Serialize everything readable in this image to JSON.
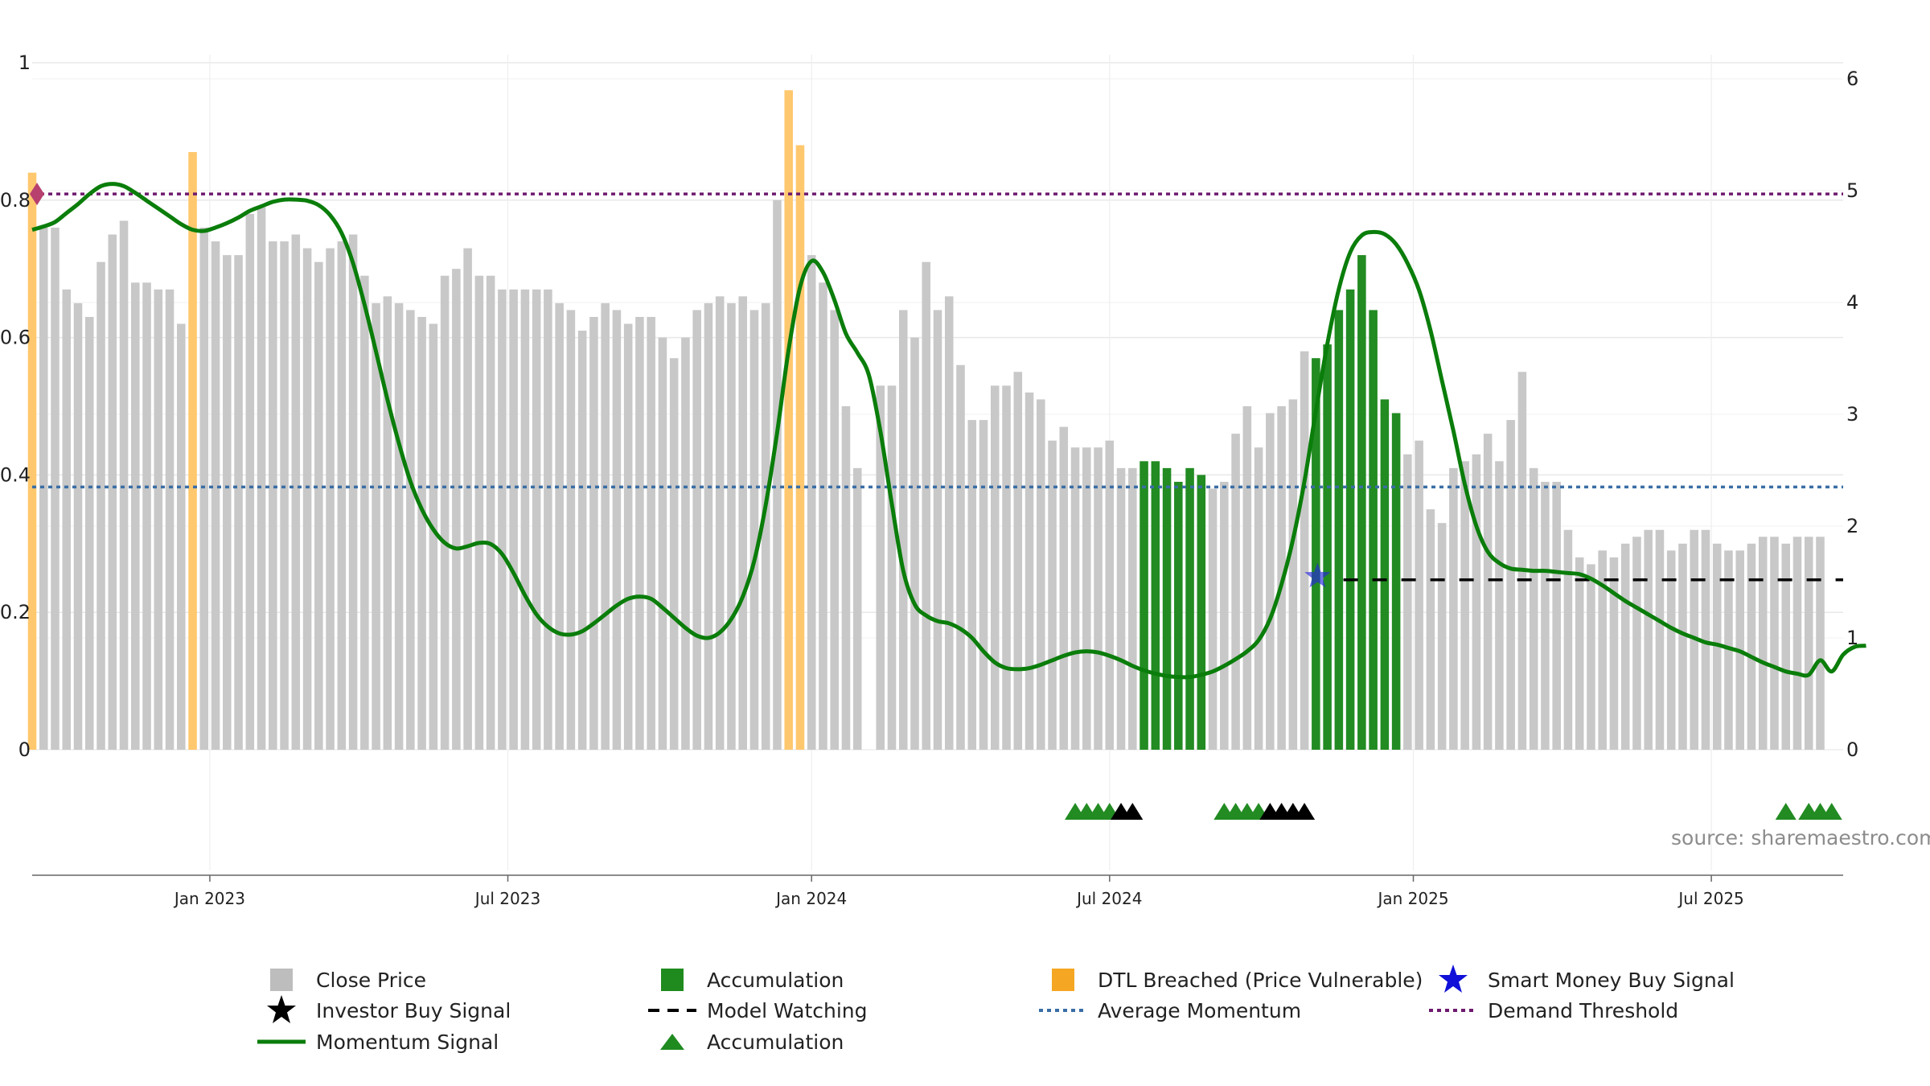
{
  "source_text": "source: sharemaestro.com",
  "colors": {
    "close_price": "#c8c8c8",
    "accumulation": "#228b22",
    "dtl_breached": "#ffc86e",
    "momentum": "#0a7d0a",
    "average_momentum": "#3a6ea5",
    "demand_threshold": "#6e1a6e",
    "smart_money": "#2828dc",
    "investor": "#000000"
  },
  "legend": [
    {
      "label": "Close Price",
      "symbol": "square",
      "color": "#bdbdbd"
    },
    {
      "label": "Accumulation",
      "symbol": "square",
      "color": "#1f8b1f"
    },
    {
      "label": "DTL Breached (Price Vulnerable)",
      "symbol": "square",
      "color": "#f5a623"
    },
    {
      "label": "Smart Money Buy Signal",
      "symbol": "star",
      "color": "#1010d8"
    },
    {
      "label": "Investor Buy Signal",
      "symbol": "star",
      "color": "#000000"
    },
    {
      "label": "Model Watching",
      "symbol": "dash",
      "color": "#000000"
    },
    {
      "label": "Average Momentum",
      "symbol": "dot",
      "color": "#3a6ea5"
    },
    {
      "label": "Demand Threshold",
      "symbol": "dot",
      "color": "#6e1a6e"
    },
    {
      "label": "Momentum Signal",
      "symbol": "line",
      "color": "#0a7d0a"
    },
    {
      "label": "Accumulation",
      "symbol": "triangle",
      "color": "#1f8b1f"
    }
  ],
  "chart_data": {
    "type": "bar",
    "xlabel": "",
    "ylabel_left": "",
    "ylabel_right": "",
    "left_axis": {
      "range": [
        0,
        1
      ],
      "ticks": [
        "0",
        "0.2",
        "0.4",
        "0.6",
        "0.8",
        "1"
      ]
    },
    "right_axis": {
      "range": [
        0,
        6
      ],
      "ticks": [
        "0",
        "1",
        "2",
        "3",
        "4",
        "5",
        "6"
      ]
    },
    "x_ticks": [
      "Jan 2023",
      "Jul 2023",
      "Jan 2024",
      "Jul 2024",
      "Jan 2025",
      "Jul 2025"
    ],
    "x_range_week_index": [
      0,
      158
    ],
    "x_tick_week_index": [
      15.5,
      41.5,
      68,
      94,
      120.5,
      146.5
    ],
    "legend_position": "bottom",
    "average_momentum": 2.35,
    "demand_threshold": 4.97,
    "model_watching_level": 1.52,
    "model_watching_start_week": 113,
    "close_price": [
      0.84,
      0.76,
      0.76,
      0.67,
      0.65,
      0.63,
      0.71,
      0.75,
      0.77,
      0.68,
      0.68,
      0.67,
      0.67,
      0.62,
      0.87,
      0.76,
      0.74,
      0.72,
      0.72,
      0.78,
      0.79,
      0.74,
      0.74,
      0.75,
      0.73,
      0.71,
      0.73,
      0.74,
      0.75,
      0.69,
      0.65,
      0.66,
      0.65,
      0.64,
      0.63,
      0.62,
      0.69,
      0.7,
      0.73,
      0.69,
      0.69,
      0.67,
      0.67,
      0.67,
      0.67,
      0.67,
      0.65,
      0.64,
      0.61,
      0.63,
      0.65,
      0.64,
      0.62,
      0.63,
      0.63,
      0.6,
      0.57,
      0.6,
      0.64,
      0.65,
      0.66,
      0.65,
      0.66,
      0.64,
      0.65,
      0.8,
      0.96,
      0.88,
      0.72,
      0.68,
      0.64,
      0.5,
      0.41,
      0.0,
      0.53,
      0.53,
      0.64,
      0.6,
      0.71,
      0.64,
      0.66,
      0.56,
      0.48,
      0.48,
      0.53,
      0.53,
      0.55,
      0.52,
      0.51,
      0.45,
      0.47,
      0.44,
      0.44,
      0.44,
      0.45,
      0.41,
      0.41,
      0.42,
      0.42,
      0.41,
      0.39,
      0.41,
      0.4,
      0.38,
      0.39,
      0.46,
      0.5,
      0.44,
      0.49,
      0.5,
      0.51,
      0.58,
      0.57,
      0.59,
      0.64,
      0.67,
      0.72,
      0.64,
      0.51,
      0.49,
      0.43,
      0.45,
      0.35,
      0.33,
      0.41,
      0.42,
      0.43,
      0.46,
      0.42,
      0.48,
      0.55,
      0.41,
      0.39,
      0.39,
      0.32,
      0.28,
      0.27,
      0.29,
      0.28,
      0.3,
      0.31,
      0.32,
      0.32,
      0.29,
      0.3,
      0.32,
      0.32,
      0.3,
      0.29,
      0.29,
      0.3,
      0.31,
      0.31,
      0.3,
      0.31,
      0.31,
      0.31
    ],
    "bar_status": "DnnnnnnnnnnnnnDnnnnnnnnnnnnnnnnnnnnnnnnnnnnnnnnnnnnnnnnnnnnnnnnnnnDDnnnnnnnnnnnnnnnnnnnnnnnnnnnnnAAAAAAnnnnnnnnnAAAAAAAAnnnnnnnnnnnnnnnnnnnnnnnnnnnnnnnnnnnnnnnnnnnnnnAnAAA",
    "momentum_signal": [
      4.65,
      4.68,
      4.72,
      4.8,
      4.88,
      4.97,
      5.04,
      5.06,
      5.04,
      4.98,
      4.91,
      4.84,
      4.77,
      4.7,
      4.65,
      4.64,
      4.67,
      4.71,
      4.76,
      4.82,
      4.86,
      4.9,
      4.92,
      4.92,
      4.91,
      4.87,
      4.78,
      4.62,
      4.35,
      3.98,
      3.56,
      3.13,
      2.74,
      2.4,
      2.15,
      1.97,
      1.85,
      1.8,
      1.82,
      1.85,
      1.84,
      1.75,
      1.58,
      1.38,
      1.21,
      1.1,
      1.04,
      1.03,
      1.06,
      1.13,
      1.21,
      1.29,
      1.35,
      1.37,
      1.35,
      1.27,
      1.18,
      1.09,
      1.02,
      1.0,
      1.05,
      1.17,
      1.37,
      1.69,
      2.19,
      2.84,
      3.58,
      4.14,
      4.37,
      4.27,
      4.02,
      3.72,
      3.55,
      3.35,
      2.85,
      2.2,
      1.6,
      1.3,
      1.2,
      1.15,
      1.13,
      1.08,
      1.0,
      0.88,
      0.78,
      0.73,
      0.72,
      0.73,
      0.76,
      0.8,
      0.84,
      0.87,
      0.88,
      0.87,
      0.84,
      0.8,
      0.75,
      0.71,
      0.68,
      0.66,
      0.65,
      0.65,
      0.67,
      0.7,
      0.75,
      0.81,
      0.88,
      0.98,
      1.17,
      1.48,
      1.88,
      2.4,
      3.03,
      3.63,
      4.12,
      4.45,
      4.6,
      4.63,
      4.61,
      4.52,
      4.35,
      4.11,
      3.75,
      3.3,
      2.85,
      2.37,
      2.0,
      1.77,
      1.67,
      1.62,
      1.61,
      1.6,
      1.6,
      1.59,
      1.58,
      1.57,
      1.53,
      1.47,
      1.4,
      1.33,
      1.27,
      1.21,
      1.15,
      1.09,
      1.04,
      1.0,
      0.96,
      0.94,
      0.91,
      0.88,
      0.83,
      0.78,
      0.74,
      0.7,
      0.68,
      0.67,
      0.8,
      0.7,
      0.85,
      0.92,
      0.93
    ],
    "accumulation_triangles": [
      {
        "week": 91,
        "color": "green"
      },
      {
        "week": 92,
        "color": "green"
      },
      {
        "week": 93,
        "color": "green"
      },
      {
        "week": 94,
        "color": "green"
      },
      {
        "week": 95,
        "color": "black"
      },
      {
        "week": 96,
        "color": "black"
      },
      {
        "week": 104,
        "color": "green"
      },
      {
        "week": 105,
        "color": "green"
      },
      {
        "week": 106,
        "color": "green"
      },
      {
        "week": 107,
        "color": "green"
      },
      {
        "week": 108,
        "color": "black"
      },
      {
        "week": 109,
        "color": "black"
      },
      {
        "week": 110,
        "color": "black"
      },
      {
        "week": 111,
        "color": "black"
      },
      {
        "week": 153,
        "color": "green"
      },
      {
        "week": 155,
        "color": "green"
      },
      {
        "week": 156,
        "color": "green"
      },
      {
        "week": 157,
        "color": "green"
      }
    ],
    "smart_money_buy_signal": {
      "week": 112,
      "value": 1.55
    },
    "demand_marker_week": 0
  }
}
